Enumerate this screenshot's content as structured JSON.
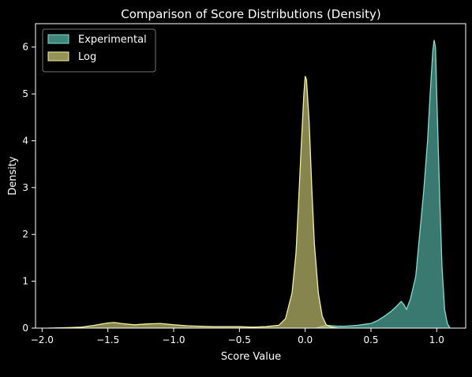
{
  "chart_data": {
    "type": "area",
    "title": "Comparison of Score Distributions (Density)",
    "xlabel": "Score Value",
    "ylabel": "Density",
    "xlim": [
      -2.05,
      1.22
    ],
    "ylim": [
      0,
      6.5
    ],
    "xticks": [
      -2.0,
      -1.5,
      -1.0,
      -0.5,
      0.0,
      0.5,
      1.0
    ],
    "xtick_labels": [
      "−2.0",
      "−1.5",
      "−1.0",
      "−0.5",
      "0.0",
      "0.5",
      "1.0"
    ],
    "yticks": [
      0,
      1,
      2,
      3,
      4,
      5,
      6
    ],
    "ytick_labels": [
      "0",
      "1",
      "2",
      "3",
      "4",
      "5",
      "6"
    ],
    "grid": false,
    "legend_position": "top-left",
    "series": [
      {
        "name": "Experimental",
        "fill": "#4fa89a",
        "stroke": "#7fe0cf",
        "points": [
          [
            0.08,
            0.0
          ],
          [
            0.12,
            0.03
          ],
          [
            0.16,
            0.06
          ],
          [
            0.2,
            0.05
          ],
          [
            0.25,
            0.04
          ],
          [
            0.3,
            0.04
          ],
          [
            0.35,
            0.05
          ],
          [
            0.4,
            0.06
          ],
          [
            0.45,
            0.08
          ],
          [
            0.5,
            0.1
          ],
          [
            0.55,
            0.16
          ],
          [
            0.6,
            0.25
          ],
          [
            0.65,
            0.35
          ],
          [
            0.7,
            0.48
          ],
          [
            0.73,
            0.57
          ],
          [
            0.75,
            0.5
          ],
          [
            0.77,
            0.4
          ],
          [
            0.8,
            0.62
          ],
          [
            0.84,
            1.1
          ],
          [
            0.87,
            2.0
          ],
          [
            0.9,
            2.9
          ],
          [
            0.93,
            4.0
          ],
          [
            0.95,
            5.0
          ],
          [
            0.97,
            5.9
          ],
          [
            0.98,
            6.15
          ],
          [
            0.99,
            6.0
          ],
          [
            1.0,
            5.0
          ],
          [
            1.02,
            3.0
          ],
          [
            1.04,
            1.3
          ],
          [
            1.06,
            0.4
          ],
          [
            1.08,
            0.1
          ],
          [
            1.1,
            0.0
          ]
        ]
      },
      {
        "name": "Log",
        "fill": "#b9b96b",
        "stroke": "#f2f29a",
        "points": [
          [
            -1.95,
            0.0
          ],
          [
            -1.8,
            0.01
          ],
          [
            -1.7,
            0.02
          ],
          [
            -1.6,
            0.06
          ],
          [
            -1.5,
            0.11
          ],
          [
            -1.45,
            0.12
          ],
          [
            -1.4,
            0.1
          ],
          [
            -1.3,
            0.07
          ],
          [
            -1.2,
            0.09
          ],
          [
            -1.1,
            0.1
          ],
          [
            -1.0,
            0.07
          ],
          [
            -0.9,
            0.05
          ],
          [
            -0.8,
            0.04
          ],
          [
            -0.7,
            0.03
          ],
          [
            -0.6,
            0.03
          ],
          [
            -0.5,
            0.03
          ],
          [
            -0.4,
            0.02
          ],
          [
            -0.3,
            0.03
          ],
          [
            -0.2,
            0.06
          ],
          [
            -0.15,
            0.2
          ],
          [
            -0.1,
            0.75
          ],
          [
            -0.07,
            1.6
          ],
          [
            -0.05,
            2.7
          ],
          [
            -0.03,
            3.9
          ],
          [
            -0.01,
            5.0
          ],
          [
            0.0,
            5.38
          ],
          [
            0.01,
            5.3
          ],
          [
            0.03,
            4.4
          ],
          [
            0.05,
            3.0
          ],
          [
            0.07,
            1.8
          ],
          [
            0.1,
            0.75
          ],
          [
            0.13,
            0.25
          ],
          [
            0.16,
            0.07
          ],
          [
            0.2,
            0.02
          ],
          [
            0.25,
            0.0
          ]
        ]
      }
    ]
  }
}
